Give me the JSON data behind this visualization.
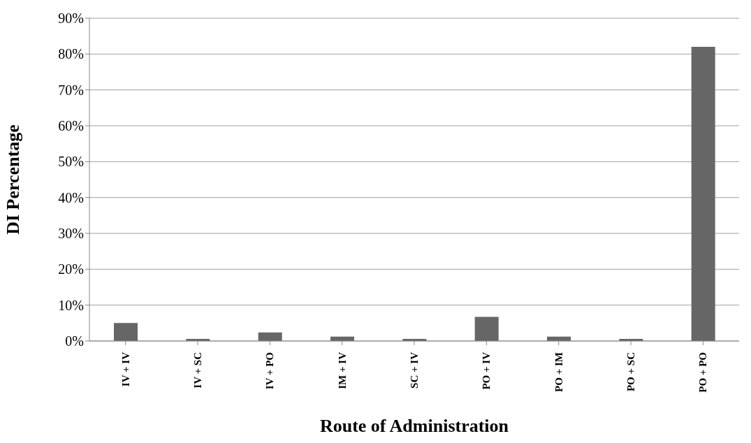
{
  "chart_data": {
    "type": "bar",
    "xlabel": "Route of Administration",
    "ylabel": "DI Percentage",
    "categories": [
      "IV + IV",
      "IV + SC",
      "IV + PO",
      "IM + IV",
      "SC + IV",
      "PO + IV",
      "PO + IM",
      "PO + SC",
      "PO + PO"
    ],
    "values": [
      5.0,
      0.6,
      2.4,
      1.2,
      0.6,
      6.7,
      1.2,
      0.6,
      82
    ],
    "color": "#666666",
    "ylim": [
      0,
      90
    ],
    "yticks": [
      {
        "value": 0,
        "label": "0%"
      },
      {
        "value": 10,
        "label": "10%"
      },
      {
        "value": 20,
        "label": "20%"
      },
      {
        "value": 30,
        "label": "30%"
      },
      {
        "value": 40,
        "label": "40%"
      },
      {
        "value": 50,
        "label": "50%"
      },
      {
        "value": 60,
        "label": "60%"
      },
      {
        "value": 70,
        "label": "70%"
      },
      {
        "value": 80,
        "label": "80%"
      },
      {
        "value": 90,
        "label": "90%"
      }
    ],
    "grid": "y"
  }
}
